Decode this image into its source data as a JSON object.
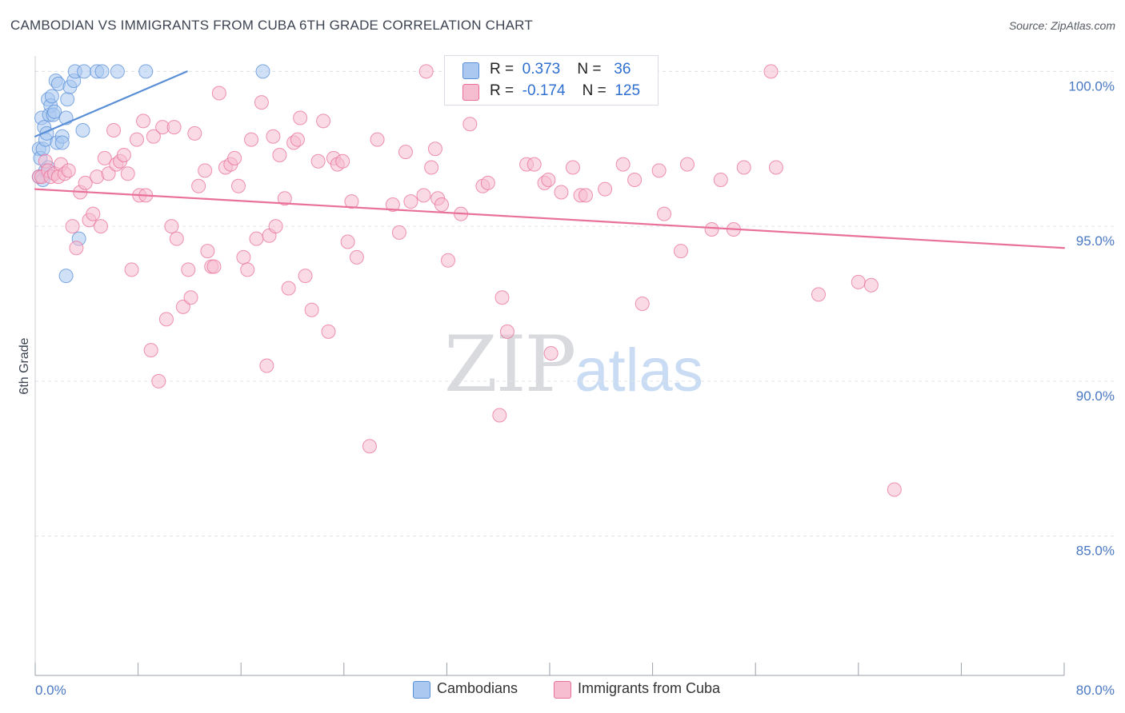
{
  "header": {
    "title": "CAMBODIAN VS IMMIGRANTS FROM CUBA 6TH GRADE CORRELATION CHART",
    "source": "Source: ZipAtlas.com"
  },
  "legend": {
    "row1": {
      "r_label": "R =",
      "r_value": "0.373",
      "n_label": "N =",
      "n_value": "36",
      "color": "#aac8f0"
    },
    "row2": {
      "r_label": "R =",
      "r_value": "-0.174",
      "n_label": "N =",
      "n_value": "125",
      "color": "#f6bcd0"
    }
  },
  "bottom_legend": {
    "s1": {
      "label": "Cambodians",
      "color": "#aac8f0"
    },
    "s2": {
      "label": "Immigrants from Cuba",
      "color": "#f6bcd0"
    }
  },
  "watermark": {
    "zip": "ZIP",
    "atlas": "atlas"
  },
  "chart_data": {
    "type": "scatter",
    "title": "CAMBODIAN VS IMMIGRANTS FROM CUBA 6TH GRADE CORRELATION CHART",
    "xlabel": "",
    "ylabel": "6th Grade",
    "xlim": [
      0,
      80
    ],
    "ylim": [
      80.5,
      100.5
    ],
    "x_tick_labels": [
      "0.0%",
      "80.0%"
    ],
    "y_ticks": [
      85,
      90,
      95,
      100
    ],
    "y_tick_labels": [
      "85.0%",
      "90.0%",
      "95.0%",
      "100.0%"
    ],
    "grid": true,
    "series": [
      {
        "name": "Cambodians",
        "color": "#5a8fd8",
        "fill": "#aac8f0",
        "trend": {
          "x": [
            0.0,
            11.8
          ],
          "y": [
            97.9,
            100.0
          ]
        },
        "points": [
          [
            0.3,
            97.5
          ],
          [
            0.3,
            96.6
          ],
          [
            0.4,
            97.2
          ],
          [
            0.5,
            98.5
          ],
          [
            0.6,
            97.5
          ],
          [
            0.7,
            98.2
          ],
          [
            0.8,
            97.8
          ],
          [
            0.9,
            98.0
          ],
          [
            1.0,
            99.1
          ],
          [
            1.1,
            98.6
          ],
          [
            1.2,
            98.9
          ],
          [
            1.3,
            99.2
          ],
          [
            1.4,
            98.6
          ],
          [
            1.5,
            98.7
          ],
          [
            1.6,
            99.7
          ],
          [
            1.7,
            97.7
          ],
          [
            1.8,
            99.6
          ],
          [
            2.1,
            97.9
          ],
          [
            2.1,
            97.7
          ],
          [
            2.4,
            98.5
          ],
          [
            2.5,
            99.1
          ],
          [
            2.7,
            99.5
          ],
          [
            3.0,
            99.7
          ],
          [
            3.1,
            100.0
          ],
          [
            3.4,
            94.6
          ],
          [
            3.7,
            98.1
          ],
          [
            3.8,
            100.0
          ],
          [
            4.8,
            100.0
          ],
          [
            5.2,
            100.0
          ],
          [
            6.4,
            100.0
          ],
          [
            8.6,
            100.0
          ],
          [
            17.7,
            100.0
          ],
          [
            2.4,
            93.4
          ],
          [
            1.0,
            96.9
          ],
          [
            0.6,
            96.5
          ],
          [
            0.8,
            96.8
          ]
        ]
      },
      {
        "name": "Immigrants from Cuba",
        "color": "#e8709a",
        "fill": "#f6bcd0",
        "trend": {
          "x": [
            0.0,
            80.0
          ],
          "y": [
            96.2,
            94.3
          ]
        },
        "points": [
          [
            0.3,
            96.6
          ],
          [
            0.5,
            96.6
          ],
          [
            0.8,
            97.1
          ],
          [
            1.0,
            96.8
          ],
          [
            1.2,
            96.6
          ],
          [
            1.5,
            96.7
          ],
          [
            1.8,
            96.6
          ],
          [
            2.0,
            97.0
          ],
          [
            2.3,
            96.7
          ],
          [
            2.6,
            96.8
          ],
          [
            2.9,
            95.0
          ],
          [
            3.2,
            94.3
          ],
          [
            3.5,
            96.1
          ],
          [
            3.9,
            96.4
          ],
          [
            4.2,
            95.2
          ],
          [
            4.5,
            95.4
          ],
          [
            4.8,
            96.6
          ],
          [
            5.1,
            95.0
          ],
          [
            5.4,
            97.2
          ],
          [
            5.7,
            96.7
          ],
          [
            6.1,
            98.1
          ],
          [
            6.3,
            97.0
          ],
          [
            6.6,
            97.1
          ],
          [
            6.9,
            97.3
          ],
          [
            7.2,
            96.7
          ],
          [
            7.5,
            93.6
          ],
          [
            7.9,
            97.8
          ],
          [
            8.1,
            96.0
          ],
          [
            8.4,
            98.4
          ],
          [
            8.6,
            96.0
          ],
          [
            9.0,
            91.0
          ],
          [
            9.2,
            97.9
          ],
          [
            9.6,
            90.0
          ],
          [
            9.9,
            98.2
          ],
          [
            10.2,
            92.0
          ],
          [
            10.6,
            95.0
          ],
          [
            10.8,
            98.2
          ],
          [
            11.0,
            94.6
          ],
          [
            11.5,
            92.4
          ],
          [
            11.9,
            93.6
          ],
          [
            12.1,
            92.7
          ],
          [
            12.4,
            98.0
          ],
          [
            12.7,
            96.3
          ],
          [
            13.2,
            96.8
          ],
          [
            13.4,
            94.2
          ],
          [
            13.7,
            93.7
          ],
          [
            13.9,
            93.7
          ],
          [
            14.3,
            99.3
          ],
          [
            14.8,
            96.9
          ],
          [
            15.2,
            97.0
          ],
          [
            15.5,
            97.2
          ],
          [
            15.8,
            96.3
          ],
          [
            16.2,
            94.0
          ],
          [
            16.5,
            93.6
          ],
          [
            16.8,
            97.8
          ],
          [
            17.2,
            94.6
          ],
          [
            17.6,
            99.0
          ],
          [
            18.0,
            90.5
          ],
          [
            18.2,
            94.7
          ],
          [
            18.5,
            97.9
          ],
          [
            18.7,
            95.0
          ],
          [
            19.0,
            97.3
          ],
          [
            19.4,
            95.9
          ],
          [
            19.7,
            93.0
          ],
          [
            20.1,
            97.7
          ],
          [
            20.4,
            97.8
          ],
          [
            20.6,
            98.5
          ],
          [
            21.0,
            93.4
          ],
          [
            21.5,
            92.3
          ],
          [
            22.0,
            97.1
          ],
          [
            22.4,
            98.4
          ],
          [
            22.8,
            91.6
          ],
          [
            23.2,
            97.2
          ],
          [
            23.5,
            97.0
          ],
          [
            23.9,
            97.1
          ],
          [
            24.3,
            94.5
          ],
          [
            24.6,
            95.8
          ],
          [
            25.0,
            94.0
          ],
          [
            26.0,
            87.9
          ],
          [
            26.6,
            97.8
          ],
          [
            27.8,
            95.7
          ],
          [
            28.3,
            94.8
          ],
          [
            28.8,
            97.4
          ],
          [
            29.2,
            95.8
          ],
          [
            30.2,
            96.0
          ],
          [
            30.4,
            100.0
          ],
          [
            30.8,
            96.9
          ],
          [
            31.1,
            97.5
          ],
          [
            31.3,
            95.9
          ],
          [
            31.6,
            95.7
          ],
          [
            32.1,
            93.9
          ],
          [
            33.1,
            95.4
          ],
          [
            33.8,
            98.3
          ],
          [
            34.8,
            96.3
          ],
          [
            35.2,
            96.4
          ],
          [
            36.1,
            88.9
          ],
          [
            36.3,
            92.7
          ],
          [
            36.7,
            91.6
          ],
          [
            38.2,
            97.0
          ],
          [
            38.8,
            97.0
          ],
          [
            39.6,
            96.4
          ],
          [
            39.9,
            96.5
          ],
          [
            40.1,
            90.9
          ],
          [
            40.9,
            96.1
          ],
          [
            41.8,
            96.9
          ],
          [
            42.4,
            96.0
          ],
          [
            42.8,
            96.0
          ],
          [
            44.3,
            96.2
          ],
          [
            45.7,
            97.0
          ],
          [
            46.6,
            96.5
          ],
          [
            47.2,
            92.5
          ],
          [
            48.5,
            96.8
          ],
          [
            48.9,
            95.4
          ],
          [
            50.2,
            94.2
          ],
          [
            50.7,
            97.0
          ],
          [
            52.6,
            94.9
          ],
          [
            53.3,
            96.5
          ],
          [
            54.3,
            94.9
          ],
          [
            55.1,
            96.9
          ],
          [
            57.2,
            100.0
          ],
          [
            57.6,
            96.9
          ],
          [
            60.9,
            92.8
          ],
          [
            64.0,
            93.2
          ],
          [
            65.0,
            93.1
          ],
          [
            66.8,
            86.5
          ]
        ]
      }
    ]
  }
}
